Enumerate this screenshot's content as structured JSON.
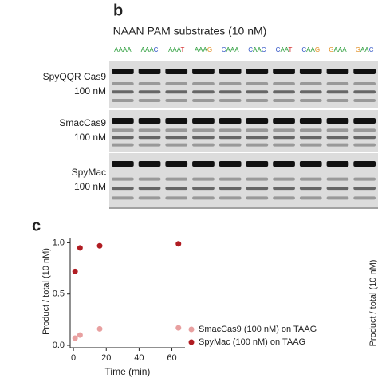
{
  "panel_b": {
    "label": "b",
    "title": "NAAN PAM substrates (10 nM)",
    "lanes": [
      "AAAA",
      "AAAC",
      "AAAT",
      "AAAG",
      "CAAA",
      "CAAC",
      "CAAT",
      "CAAG",
      "GAAA",
      "GAAC"
    ],
    "rows": [
      {
        "name": "SpyQQR Cas9",
        "conc": "100 nM",
        "color": "#111111"
      },
      {
        "name": "SmacCas9",
        "conc": "100 nM",
        "color": "#e8a0a0"
      },
      {
        "name": "SpyMac",
        "conc": "100 nM",
        "color": "#b01c22"
      }
    ]
  },
  "panel_d_ylabel": "Product / total  (10 nM)",
  "chart_data": {
    "type": "scatter",
    "label": "c",
    "x_label": "Time (min)",
    "y_label": "Product / total  (10 nM)",
    "xlim": [
      -2,
      68
    ],
    "xticks": [
      0,
      20,
      40,
      60
    ],
    "ylim": [
      0,
      1.05
    ],
    "yticks": [
      {
        "value": 0,
        "label": "0.0"
      },
      {
        "value": 0.5,
        "label": "0.5"
      },
      {
        "value": 1,
        "label": "1.0"
      }
    ],
    "legend": "lower right",
    "series": [
      {
        "name": "SmacCas9 (100 nM) on TAAG",
        "color": "#e8a0a0",
        "x": [
          1,
          4,
          16,
          64
        ],
        "values": [
          0.07,
          0.1,
          0.16,
          0.17
        ]
      },
      {
        "name": "SpyMac (100 nM) on TAAG",
        "color": "#b01c22",
        "x": [
          1,
          4,
          16,
          64
        ],
        "values": [
          0.72,
          0.95,
          0.97,
          0.99
        ]
      }
    ]
  }
}
